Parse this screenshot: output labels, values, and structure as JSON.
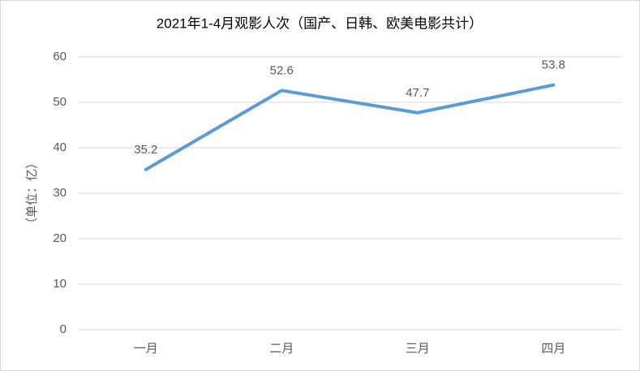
{
  "chart_data": {
    "type": "line",
    "title": "2021年1-4月观影人次（国产、日韩、欧美电影共计）",
    "y_label": "（单位：亿）",
    "categories": [
      "一月",
      "二月",
      "三月",
      "四月"
    ],
    "series": [
      {
        "name": "观影人次",
        "color": "#5b9bd5",
        "values": [
          35.2,
          52.6,
          47.7,
          53.8
        ]
      }
    ],
    "ylim": [
      0,
      60
    ],
    "yticks": [
      0,
      10,
      20,
      30,
      40,
      50,
      60
    ],
    "grid": true,
    "data_labels": true
  }
}
